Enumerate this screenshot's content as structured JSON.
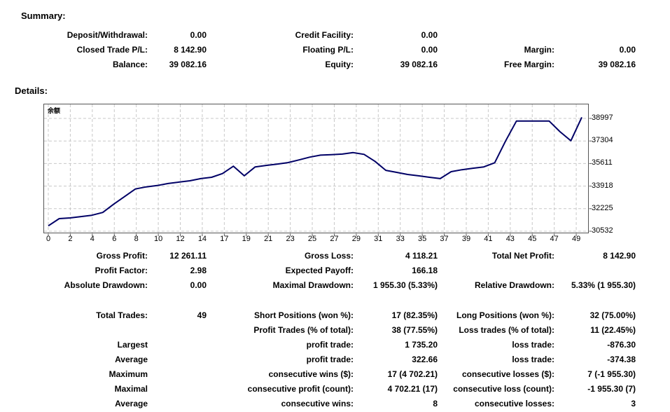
{
  "summary": {
    "heading": "Summary:",
    "rows": [
      [
        "Deposit/Withdrawal:",
        "0.00",
        "Credit Facility:",
        "0.00",
        "",
        ""
      ],
      [
        "Closed Trade P/L:",
        "8 142.90",
        "Floating P/L:",
        "0.00",
        "Margin:",
        "0.00"
      ],
      [
        "Balance:",
        "39 082.16",
        "Equity:",
        "39 082.16",
        "Free Margin:",
        "39 082.16"
      ]
    ]
  },
  "details": {
    "heading": "Details:"
  },
  "chart_data": {
    "type": "line",
    "title": "余额",
    "xlabel": "",
    "ylabel": "",
    "legend_position": "none",
    "grid": "dashed",
    "line_color": "#000066",
    "grid_color": "#c8c8c8",
    "border_color": "#555555",
    "x_tick_labels": [
      "0",
      "2",
      "4",
      "6",
      "8",
      "10",
      "12",
      "14",
      "17",
      "19",
      "21",
      "23",
      "25",
      "27",
      "29",
      "31",
      "33",
      "35",
      "37",
      "39",
      "41",
      "43",
      "45",
      "47",
      "49"
    ],
    "y_tick_labels": [
      "38997",
      "37304",
      "35611",
      "33918",
      "32225",
      "30532"
    ],
    "ylim": [
      30450,
      39150
    ],
    "x": [
      0,
      1,
      2,
      3,
      4,
      5,
      6,
      7,
      8,
      9,
      10,
      11,
      12,
      13,
      14,
      15,
      16,
      17,
      18,
      19,
      20,
      21,
      22,
      23,
      24,
      25,
      26,
      27,
      28,
      29,
      30,
      31,
      32,
      33,
      34,
      35,
      36,
      37,
      38,
      39,
      40,
      41,
      42,
      43,
      44,
      45,
      46,
      47,
      48,
      49
    ],
    "series": [
      {
        "name": "Balance",
        "values": [
          30939.26,
          31480,
          31530,
          31630,
          31730,
          31940,
          32560,
          33130,
          33700,
          33860,
          33960,
          34110,
          34220,
          34320,
          34480,
          34580,
          34860,
          35410,
          34690,
          35360,
          35470,
          35570,
          35680,
          35880,
          36090,
          36240,
          36280,
          36320,
          36430,
          36300,
          35780,
          35100,
          34950,
          34790,
          34690,
          34580,
          34480,
          35000,
          35150,
          35260,
          35360,
          35670,
          37300,
          38800,
          38800,
          38800,
          38800,
          38000,
          37320,
          39082.16
        ]
      }
    ]
  },
  "stats": {
    "rows": [
      [
        "Gross Profit:",
        "12 261.11",
        "Gross Loss:",
        "4 118.21",
        "Total Net Profit:",
        "8 142.90"
      ],
      [
        "Profit Factor:",
        "2.98",
        "Expected Payoff:",
        "166.18",
        "",
        ""
      ],
      [
        "Absolute Drawdown:",
        "0.00",
        "Maximal Drawdown:",
        "1 955.30 (5.33%)",
        "Relative Drawdown:",
        "5.33% (1 955.30)"
      ]
    ]
  },
  "trade_stats": {
    "rows": [
      [
        "Total Trades:",
        "49",
        "Short Positions (won %):",
        "17 (82.35%)",
        "Long Positions (won %):",
        "32 (75.00%)"
      ],
      [
        "",
        "",
        "Profit Trades (% of total):",
        "38 (77.55%)",
        "Loss trades (% of total):",
        "11 (22.45%)"
      ],
      [
        "Largest",
        "",
        "profit trade:",
        "1 735.20",
        "loss trade:",
        "-876.30"
      ],
      [
        "Average",
        "",
        "profit trade:",
        "322.66",
        "loss trade:",
        "-374.38"
      ],
      [
        "Maximum",
        "",
        "consecutive wins ($):",
        "17 (4 702.21)",
        "consecutive losses ($):",
        "7 (-1 955.30)"
      ],
      [
        "Maximal",
        "",
        "consecutive profit (count):",
        "4 702.21 (17)",
        "consecutive loss (count):",
        "-1 955.30 (7)"
      ],
      [
        "Average",
        "",
        "consecutive wins:",
        "8",
        "consecutive losses:",
        "3"
      ]
    ]
  }
}
